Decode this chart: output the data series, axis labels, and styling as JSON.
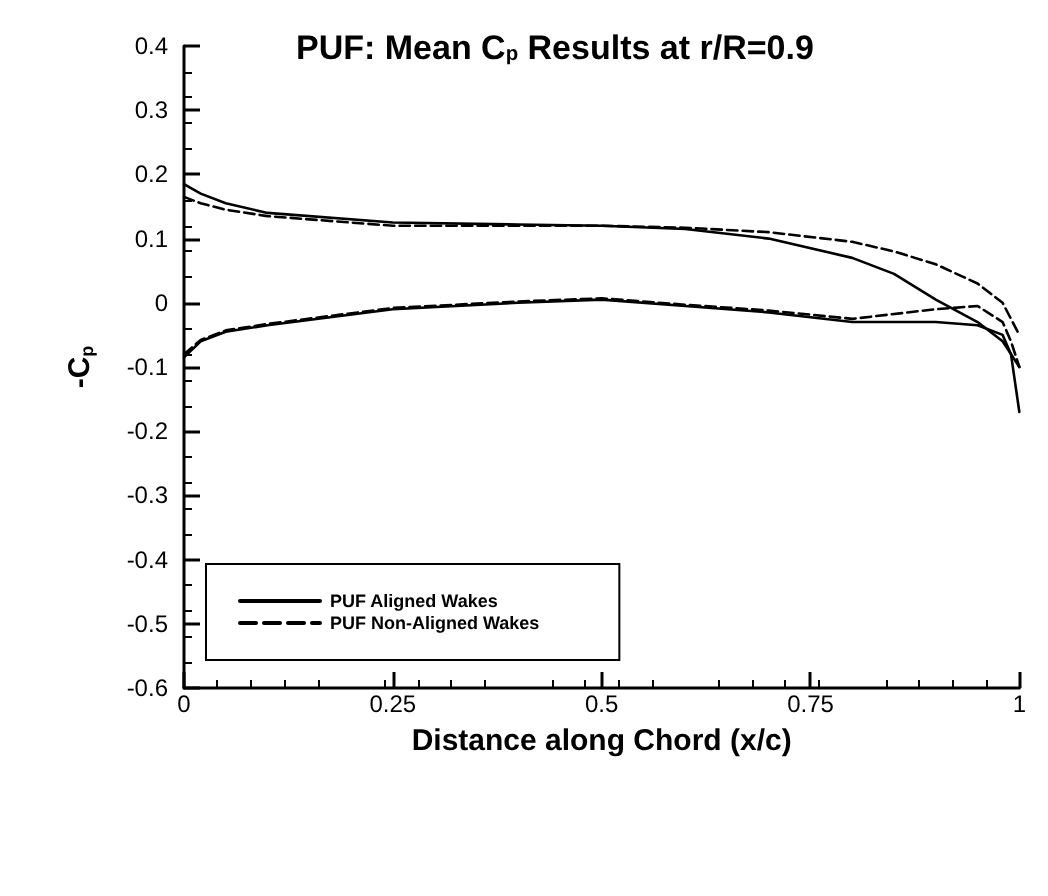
{
  "chart_data": {
    "type": "line",
    "title": "PUF: Mean C$_{p}$ Results at r/R=0.9",
    "xlabel": "Distance along Chord (x/c)",
    "ylabel": "-C$_{p}$",
    "xlim": [
      0,
      1
    ],
    "xticks": [
      0,
      0.25,
      0.5,
      0.75,
      1
    ],
    "ylim": [
      -0.6,
      0.4
    ],
    "yticks": [
      -0.6,
      -0.5,
      -0.4,
      -0.3,
      -0.2,
      -0.1,
      0,
      0.1,
      0.2,
      0.3,
      0.4
    ],
    "grid": false,
    "legend": "bottom left",
    "marker": "none",
    "series": [
      {
        "name": "PUF Aligned Wakes",
        "color": "#000000",
        "line_style": "solid",
        "x": [
          0,
          0.02,
          0.05,
          0.1,
          0.25,
          0.4,
          0.5,
          0.6,
          0.7,
          0.8,
          0.85,
          0.9,
          0.95,
          0.98,
          1.0
        ],
        "values": [
          0.185,
          0.17,
          0.155,
          0.14,
          0.125,
          0.122,
          0.12,
          0.115,
          0.1,
          0.07,
          0.045,
          0.005,
          -0.03,
          -0.06,
          -0.1
        ]
      },
      {
        "name": "PUF Non-Aligned Wakes",
        "color": "#000000",
        "line_style": "dashed",
        "x": [
          0,
          0.02,
          0.05,
          0.1,
          0.25,
          0.4,
          0.5,
          0.6,
          0.7,
          0.8,
          0.85,
          0.9,
          0.95,
          0.98,
          1.0
        ],
        "values": [
          0.165,
          0.155,
          0.145,
          0.135,
          0.12,
          0.12,
          0.12,
          0.117,
          0.11,
          0.095,
          0.08,
          0.06,
          0.03,
          0.0,
          -0.05
        ]
      },
      {
        "color": "#000000",
        "line_style": "solid",
        "x": [
          0,
          0.02,
          0.05,
          0.1,
          0.25,
          0.4,
          0.5,
          0.6,
          0.7,
          0.8,
          0.9,
          0.95,
          0.98,
          0.99,
          1.0
        ],
        "values": [
          -0.085,
          -0.06,
          -0.045,
          -0.035,
          -0.01,
          0.0,
          0.005,
          -0.005,
          -0.015,
          -0.03,
          -0.03,
          -0.035,
          -0.05,
          -0.08,
          -0.17
        ]
      },
      {
        "color": "#000000",
        "line_style": "dashed",
        "x": [
          0,
          0.02,
          0.05,
          0.1,
          0.25,
          0.4,
          0.5,
          0.6,
          0.7,
          0.8,
          0.9,
          0.95,
          0.98,
          0.99,
          1.0
        ],
        "values": [
          -0.08,
          -0.058,
          -0.043,
          -0.033,
          -0.008,
          0.002,
          0.007,
          -0.003,
          -0.012,
          -0.025,
          -0.01,
          -0.005,
          -0.03,
          -0.06,
          -0.1
        ]
      }
    ]
  }
}
